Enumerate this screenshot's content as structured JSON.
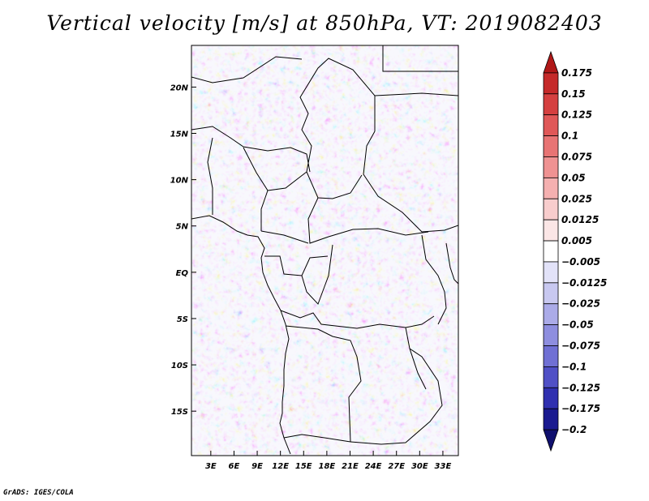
{
  "chart_data": {
    "type": "heatmap",
    "title": "Vertical velocity [m/s] at 850hPa, VT: 2019082403",
    "variable": "Vertical velocity",
    "units": "m/s",
    "level": "850hPa",
    "valid_time": "2019082403",
    "x_axis": {
      "ticks": [
        3,
        6,
        9,
        12,
        15,
        18,
        21,
        24,
        27,
        30,
        33
      ],
      "tick_labels": [
        "3E",
        "6E",
        "9E",
        "12E",
        "15E",
        "18E",
        "21E",
        "24E",
        "27E",
        "30E",
        "33E"
      ],
      "range": [
        0.5,
        35.0
      ]
    },
    "y_axis": {
      "ticks": [
        20,
        15,
        10,
        5,
        0,
        -5,
        -10,
        -15
      ],
      "tick_labels": [
        "20N",
        "15N",
        "10N",
        "5N",
        "EQ",
        "5S",
        "10S",
        "15S"
      ],
      "range": [
        -19.8,
        24.5
      ]
    },
    "colorbar": {
      "levels": [
        "0.175",
        "0.15",
        "0.125",
        "0.1",
        "0.075",
        "0.05",
        "0.025",
        "0.0125",
        "0.005",
        "−0.005",
        "−0.0125",
        "−0.025",
        "−0.05",
        "−0.075",
        "−0.1",
        "−0.125",
        "−0.175",
        "−0.2"
      ],
      "colors": [
        "#b01818",
        "#c52a2a",
        "#d54040",
        "#e05858",
        "#e87474",
        "#ef9292",
        "#f5b0b0",
        "#f8cdcd",
        "#fbe6e6",
        "#ffffff",
        "#e2e2f8",
        "#c8c8f0",
        "#ababe8",
        "#8e8edf",
        "#7070d4",
        "#5050c6",
        "#3030b0",
        "#1a1a90",
        "#10106e"
      ]
    }
  },
  "footer": {
    "credit": "GrADS: IGES/COLA"
  }
}
